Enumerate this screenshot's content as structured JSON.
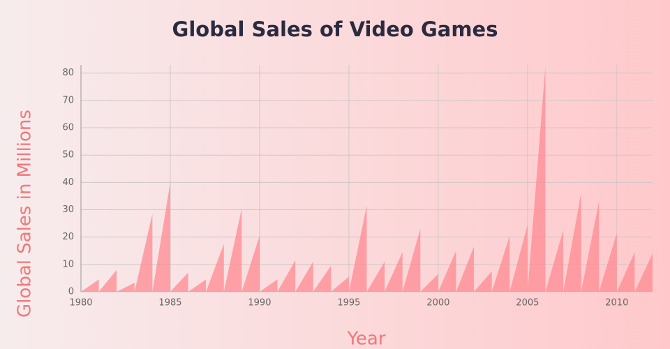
{
  "chart_data": {
    "type": "area",
    "title": "Global Sales of Video Games",
    "x_label": "Year",
    "y_label": "Global Sales in Millions",
    "x": [
      1980,
      1981,
      1982,
      1983,
      1984,
      1985,
      1986,
      1987,
      1988,
      1989,
      1990,
      1991,
      1992,
      1993,
      1994,
      1995,
      1996,
      1997,
      1998,
      1999,
      2000,
      2001,
      2002,
      2003,
      2004,
      2005,
      2006,
      2007,
      2008,
      2009,
      2010,
      2011,
      2012
    ],
    "values": [
      3,
      4.5,
      8,
      3.3,
      28.5,
      40,
      7,
      4.5,
      17.5,
      30.5,
      20.5,
      4.5,
      11.5,
      11,
      9.5,
      5.5,
      31.5,
      11,
      14.5,
      23,
      6.5,
      15,
      16.5,
      7.5,
      20.5,
      24.5,
      82.5,
      22.5,
      36,
      33,
      21.5,
      14.5,
      14
    ],
    "color": "#ff8a92",
    "xlim": [
      1980,
      2012
    ],
    "xticks": [
      1980,
      1985,
      1990,
      1995,
      2000,
      2005,
      2010
    ],
    "ylim": [
      0,
      83
    ],
    "yticks": [
      0,
      10,
      20,
      30,
      40,
      50,
      60,
      70,
      80
    ],
    "grid": true
  }
}
